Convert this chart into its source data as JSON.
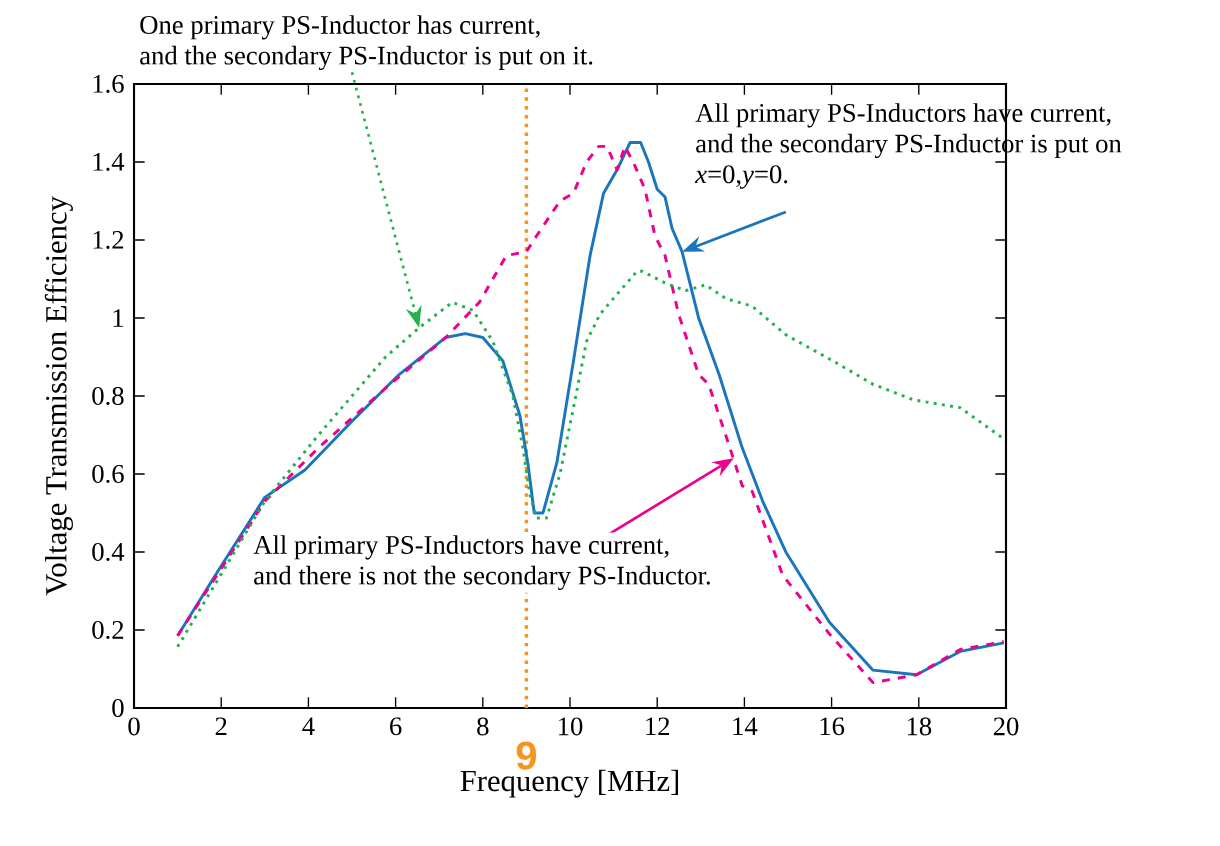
{
  "chart_data": {
    "type": "line",
    "xlabel": "Frequency [MHz]",
    "ylabel": "Voltage Transmission Efficiency",
    "xlim": [
      0,
      20
    ],
    "ylim": [
      0,
      1.6
    ],
    "xticks": [
      0,
      2,
      4,
      6,
      8,
      10,
      12,
      14,
      16,
      18,
      20
    ],
    "yticks": [
      0,
      0.2,
      0.4,
      0.6,
      0.8,
      1,
      1.2,
      1.4,
      1.6
    ],
    "grid": false,
    "series": [
      {
        "color": "#1b75bc",
        "line_style": "solid",
        "x": [
          1.0,
          1.92,
          3.0,
          3.92,
          5.0,
          6.08,
          7.15,
          7.6,
          8.0,
          8.46,
          8.85,
          9.03,
          9.18,
          9.38,
          9.7,
          10.08,
          10.46,
          10.77,
          11.08,
          11.38,
          11.62,
          11.8,
          12.0,
          12.18,
          12.34,
          12.57,
          12.95,
          13.42,
          13.95,
          14.42,
          14.95,
          15.95,
          16.95,
          17.95,
          18.95,
          19.95
        ],
        "values": [
          0.185,
          0.35,
          0.54,
          0.61,
          0.735,
          0.855,
          0.95,
          0.96,
          0.95,
          0.89,
          0.75,
          0.63,
          0.5,
          0.5,
          0.63,
          0.89,
          1.16,
          1.32,
          1.38,
          1.45,
          1.45,
          1.4,
          1.33,
          1.31,
          1.23,
          1.17,
          1.0,
          0.855,
          0.667,
          0.53,
          0.4,
          0.22,
          0.097,
          0.085,
          0.145,
          0.167
        ]
      },
      {
        "color": "#ec008c",
        "line_style": "dashed",
        "x": [
          1.0,
          3.0,
          4.23,
          5.77,
          7.15,
          7.92,
          8.54,
          9.0,
          9.23,
          9.77,
          10.08,
          10.38,
          10.66,
          10.85,
          11.08,
          11.26,
          11.49,
          11.72,
          11.95,
          12.18,
          12.49,
          12.95,
          13.18,
          13.57,
          13.95,
          14.18,
          14.88,
          15.95,
          16.95,
          17.95,
          18.95,
          19.95
        ],
        "values": [
          0.185,
          0.53,
          0.667,
          0.82,
          0.95,
          1.04,
          1.16,
          1.17,
          1.21,
          1.3,
          1.32,
          1.4,
          1.44,
          1.44,
          1.38,
          1.44,
          1.39,
          1.33,
          1.21,
          1.16,
          1.01,
          0.855,
          0.83,
          0.7,
          0.57,
          0.555,
          0.34,
          0.19,
          0.065,
          0.085,
          0.15,
          0.17
        ]
      },
      {
        "color": "#22b24c",
        "line_style": "dotted",
        "x": [
          1.0,
          3.0,
          4.23,
          5.0,
          5.77,
          6.54,
          7.3,
          7.77,
          8.23,
          8.69,
          8.92,
          9.08,
          9.23,
          9.46,
          9.77,
          10.08,
          10.38,
          10.69,
          11.15,
          11.54,
          11.65,
          12.18,
          12.65,
          13.11,
          13.57,
          14.18,
          14.95,
          16.03,
          16.95,
          17.88,
          18.95,
          19.95
        ],
        "values": [
          0.157,
          0.53,
          0.7,
          0.8,
          0.9,
          0.975,
          1.04,
          1.02,
          0.94,
          0.8,
          0.667,
          0.547,
          0.487,
          0.487,
          0.6,
          0.77,
          0.94,
          1.01,
          1.07,
          1.12,
          1.12,
          1.09,
          1.07,
          1.085,
          1.05,
          1.03,
          0.957,
          0.89,
          0.83,
          0.79,
          0.77,
          0.69
        ]
      }
    ],
    "ref_lines": [
      {
        "axis": "x",
        "value": 9,
        "label": "9",
        "color": "#f7941d",
        "line_style": "dotted"
      }
    ],
    "annotations": [
      {
        "text": "One primary PS-Inductor has current,\nand the secondary PS-Inductor is put on it.",
        "x": 6.54,
        "y": 0.975
      },
      {
        "text": "All primary PS-Inductors have current,\nand the secondary PS-Inductor is put on\n*x*=0,*y*=0.",
        "x": 12.57,
        "y": 1.17
      },
      {
        "text": "All primary PS-Inductors have current,\nand there is not the secondary PS-Inductor.",
        "x": 13.76,
        "y": 0.641
      }
    ]
  }
}
